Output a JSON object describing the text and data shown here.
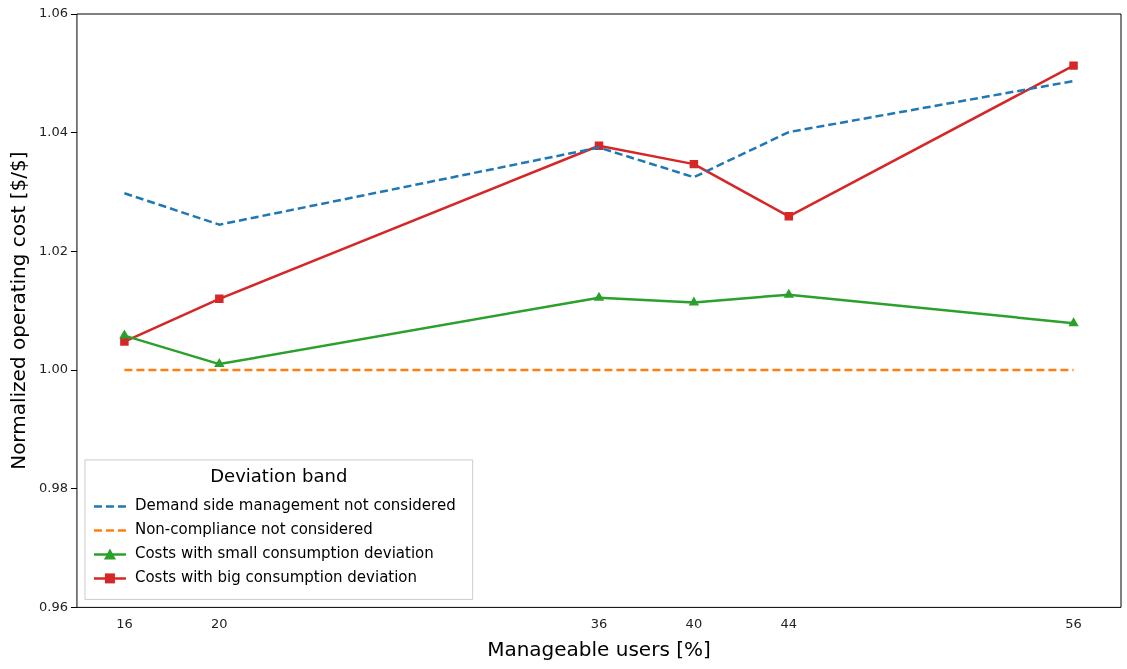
{
  "chart_data": {
    "type": "line",
    "xlabel": "Manageable users [%]",
    "ylabel": "Normalized operating cost [$/$]",
    "legend_title": "Deviation band",
    "legend": "bottom left",
    "grid": false,
    "x": [
      16,
      20,
      36,
      40,
      44,
      56
    ],
    "xlim": [
      14,
      58
    ],
    "xticks": [
      16,
      20,
      36,
      40,
      44,
      56
    ],
    "ylim": [
      0.96,
      1.06
    ],
    "yticks": [
      {
        "value": 0.96,
        "label": "0.96"
      },
      {
        "value": 0.98,
        "label": "0.98"
      },
      {
        "value": 1.0,
        "label": "1.00"
      },
      {
        "value": 1.02,
        "label": "1.02"
      },
      {
        "value": 1.04,
        "label": "1.04"
      },
      {
        "value": 1.06,
        "label": "1.06"
      }
    ],
    "series": [
      {
        "name": "Demand side management not considered",
        "color": "#1f77b4",
        "line_style": "dashed",
        "marker": "none",
        "values": [
          1.0298,
          1.0245,
          1.0375,
          1.0325,
          1.0401,
          1.0487
        ]
      },
      {
        "name": "Non-compliance not considered",
        "color": "#ff7f0e",
        "line_style": "dashed",
        "marker": "none",
        "values": [
          1.0,
          1.0,
          1.0,
          1.0,
          1.0,
          1.0
        ]
      },
      {
        "name": "Costs with small consumption deviation",
        "color": "#2ca02c",
        "line_style": "solid",
        "marker": "triangle",
        "values": [
          1.0058,
          1.001,
          1.0122,
          1.0114,
          1.0127,
          1.0079
        ]
      },
      {
        "name": "Costs with big consumption deviation",
        "color": "#d62728",
        "line_style": "solid",
        "marker": "square",
        "values": [
          1.0048,
          1.012,
          1.0378,
          1.0347,
          1.0259,
          1.0513
        ]
      }
    ]
  }
}
